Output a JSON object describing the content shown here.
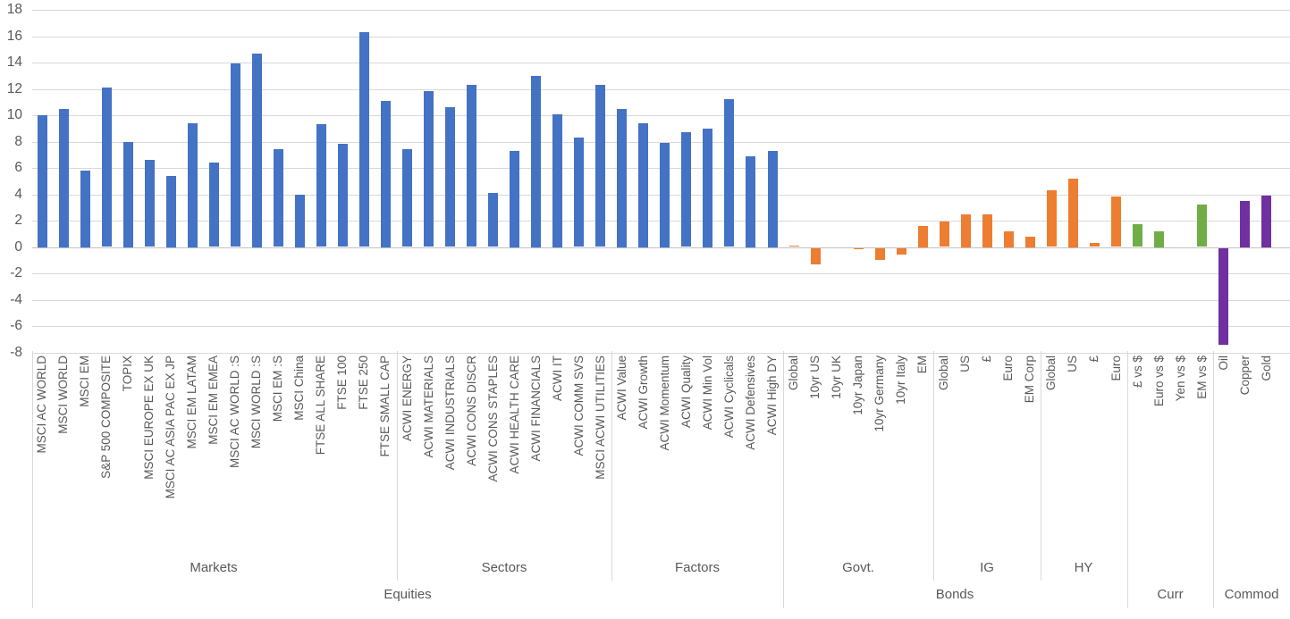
{
  "chart_data": {
    "type": "bar",
    "title": "",
    "xlabel": "",
    "ylabel": "",
    "ylim": [
      -8,
      18
    ],
    "ytick_step": 2,
    "yticks": [
      18,
      16,
      14,
      12,
      10,
      8,
      6,
      4,
      2,
      0,
      -2,
      -4,
      -6,
      -8
    ],
    "grid": true,
    "legend": "none",
    "axis_text_color": "#595959",
    "gridline_color": "#d9d9d9",
    "groups": [
      {
        "label": "Equities",
        "color": "#4472C4",
        "subgroups": [
          {
            "label": "Markets",
            "items": [
              {
                "label": "MSCI AC WORLD",
                "value": 10.0
              },
              {
                "label": "MSCI WORLD",
                "value": 10.5
              },
              {
                "label": "MSCI EM",
                "value": 5.8
              },
              {
                "label": "S&P 500 COMPOSITE",
                "value": 12.1
              },
              {
                "label": "TOPIX",
                "value": 8.0
              },
              {
                "label": "MSCI EUROPE EX UK",
                "value": 6.6
              },
              {
                "label": "MSCI AC ASIA PAC EX JP",
                "value": 5.4
              },
              {
                "label": "MSCI EM LATAM",
                "value": 9.4
              },
              {
                "label": "MSCI EM EMEA",
                "value": 6.4
              },
              {
                "label": "MSCI AC WORLD :S",
                "value": 13.9
              },
              {
                "label": "MSCI WORLD :S",
                "value": 14.7
              },
              {
                "label": "MSCI EM :S",
                "value": 7.4
              },
              {
                "label": "MSCI China",
                "value": 4.0
              },
              {
                "label": "FTSE ALL SHARE",
                "value": 9.3
              },
              {
                "label": "FTSE 100",
                "value": 7.8
              },
              {
                "label": "FTSE 250",
                "value": 16.3
              },
              {
                "label": "FTSE SMALL CAP",
                "value": 11.1
              }
            ]
          },
          {
            "label": "Sectors",
            "items": [
              {
                "label": "ACWI ENERGY",
                "value": 7.4
              },
              {
                "label": "ACWI MATERIALS",
                "value": 11.8
              },
              {
                "label": "ACWI INDUSTRIALS",
                "value": 10.6
              },
              {
                "label": "ACWI CONS DISCR",
                "value": 12.3
              },
              {
                "label": "ACWI CONS STAPLES",
                "value": 4.1
              },
              {
                "label": "ACWI HEALTH CARE",
                "value": 7.3
              },
              {
                "label": "ACWI FINANCIALS",
                "value": 13.0
              },
              {
                "label": "ACWI IT",
                "value": 10.1
              },
              {
                "label": "ACWI COMM SVS",
                "value": 8.3
              },
              {
                "label": "MSCI ACWI UTILITIES",
                "value": 12.3
              }
            ]
          },
          {
            "label": "Factors",
            "items": [
              {
                "label": "ACWI Value",
                "value": 10.5
              },
              {
                "label": "ACWI Growth",
                "value": 9.4
              },
              {
                "label": "ACWI Momentum",
                "value": 7.9
              },
              {
                "label": "ACWI Quality",
                "value": 8.7
              },
              {
                "label": "ACWI Min Vol",
                "value": 9.0
              },
              {
                "label": "ACWI Cyclicals",
                "value": 11.2
              },
              {
                "label": "ACWI Defensives",
                "value": 6.9
              },
              {
                "label": "ACWI High DY",
                "value": 7.3
              }
            ]
          }
        ]
      },
      {
        "label": "Bonds",
        "color": "#ED7D31",
        "subgroups": [
          {
            "label": "Govt.",
            "items": [
              {
                "label": "Global",
                "value": 0.1
              },
              {
                "label": "10yr US",
                "value": -1.2
              },
              {
                "label": "10yr UK",
                "value": 0.0
              },
              {
                "label": "10yr Japan",
                "value": -0.1
              },
              {
                "label": "10yr Germany",
                "value": -0.9
              },
              {
                "label": "10yr Italy",
                "value": -0.5
              },
              {
                "label": "EM",
                "value": 1.6
              }
            ]
          },
          {
            "label": "IG",
            "items": [
              {
                "label": "Global",
                "value": 1.9
              },
              {
                "label": "US",
                "value": 2.5
              },
              {
                "label": "£",
                "value": 2.5
              },
              {
                "label": "Euro",
                "value": 1.2
              },
              {
                "label": "EM Corp",
                "value": 0.8
              }
            ]
          },
          {
            "label": "HY",
            "items": [
              {
                "label": "Global",
                "value": 4.3
              },
              {
                "label": "US",
                "value": 5.2
              },
              {
                "label": "£",
                "value": 0.3
              },
              {
                "label": "Euro",
                "value": 3.8
              }
            ]
          }
        ]
      },
      {
        "label": "Curr",
        "color": "#70AD47",
        "subgroups": [
          {
            "label": "",
            "items": [
              {
                "label": "£ vs $",
                "value": 1.7
              },
              {
                "label": "Euro vs $",
                "value": 1.2
              },
              {
                "label": "Yen vs $",
                "value": 0.0
              },
              {
                "label": "EM vs $",
                "value": 3.2
              }
            ]
          }
        ]
      },
      {
        "label": "Commod",
        "color": "#7030A0",
        "subgroups": [
          {
            "label": "",
            "items": [
              {
                "label": "Oil",
                "value": -7.3
              },
              {
                "label": "Copper",
                "value": 3.5
              },
              {
                "label": "Gold",
                "value": 3.9
              }
            ]
          }
        ]
      }
    ]
  }
}
